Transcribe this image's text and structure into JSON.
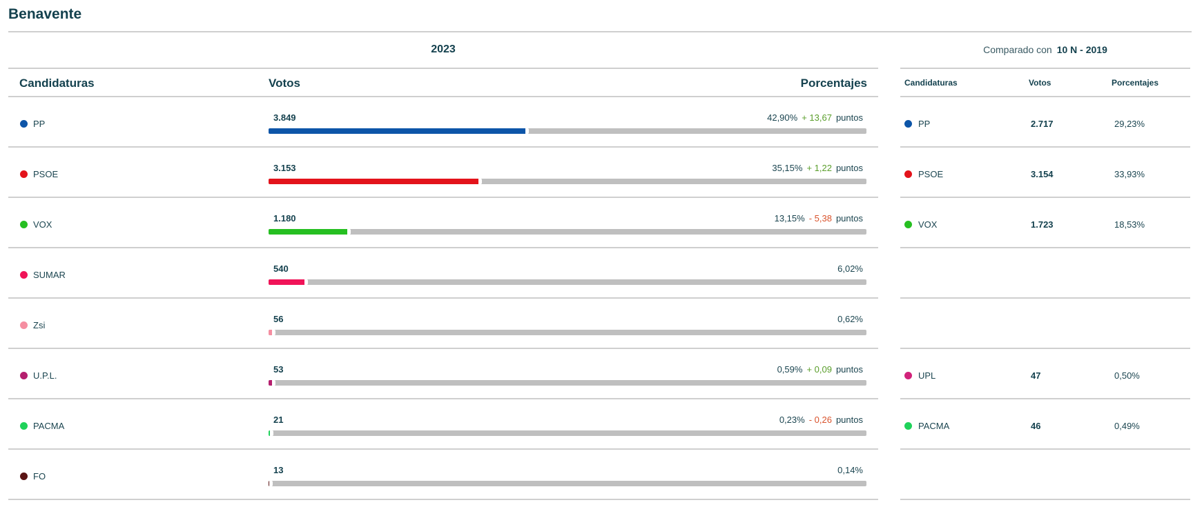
{
  "page_title": "Benavente",
  "main": {
    "year": "2023",
    "headers": {
      "candidaturas": "Candidaturas",
      "votos": "Votos",
      "porcentajes": "Porcentajes"
    },
    "rows": [
      {
        "name": "PP",
        "color": "#0d55a8",
        "votes": "3.849",
        "pct": "42,90%",
        "fraction": 0.429,
        "diff": "+ 13,67",
        "diff_dir": "up",
        "pts": "puntos"
      },
      {
        "name": "PSOE",
        "color": "#e3131b",
        "votes": "3.153",
        "pct": "35,15%",
        "fraction": 0.3515,
        "diff": "+ 1,22",
        "diff_dir": "up",
        "pts": "puntos"
      },
      {
        "name": "VOX",
        "color": "#26bf21",
        "votes": "1.180",
        "pct": "13,15%",
        "fraction": 0.1315,
        "diff": "- 5,38",
        "diff_dir": "down",
        "pts": "puntos"
      },
      {
        "name": "SUMAR",
        "color": "#f01458",
        "votes": "540",
        "pct": "6,02%",
        "fraction": 0.0602,
        "diff": "",
        "diff_dir": "",
        "pts": ""
      },
      {
        "name": "Zsi",
        "color": "#f58ea1",
        "votes": "56",
        "pct": "0,62%",
        "fraction": 0.0062,
        "diff": "",
        "diff_dir": "",
        "pts": ""
      },
      {
        "name": "U.P.L.",
        "color": "#b51f6e",
        "votes": "53",
        "pct": "0,59%",
        "fraction": 0.0059,
        "diff": "+ 0,09",
        "diff_dir": "up",
        "pts": "puntos"
      },
      {
        "name": "PACMA",
        "color": "#1fd25a",
        "votes": "21",
        "pct": "0,23%",
        "fraction": 0.0023,
        "diff": "- 0,26",
        "diff_dir": "down",
        "pts": "puntos"
      },
      {
        "name": "FO",
        "color": "#5a1414",
        "votes": "13",
        "pct": "0,14%",
        "fraction": 0.0014,
        "diff": "",
        "diff_dir": "",
        "pts": ""
      }
    ]
  },
  "comparison": {
    "label": "Comparado con",
    "election": "10 N - 2019",
    "headers": {
      "candidaturas": "Candidaturas",
      "votos": "Votos",
      "porcentajes": "Porcentajes"
    },
    "rows": [
      {
        "name": "PP",
        "color": "#0d55a8",
        "votes": "2.717",
        "pct": "29,23%"
      },
      {
        "name": "PSOE",
        "color": "#e3131b",
        "votes": "3.154",
        "pct": "33,93%"
      },
      {
        "name": "VOX",
        "color": "#26bf21",
        "votes": "1.723",
        "pct": "18,53%"
      },
      {
        "name": "",
        "color": "",
        "votes": "",
        "pct": ""
      },
      {
        "name": "",
        "color": "",
        "votes": "",
        "pct": ""
      },
      {
        "name": "UPL",
        "color": "#d1227a",
        "votes": "47",
        "pct": "0,50%"
      },
      {
        "name": "PACMA",
        "color": "#1fd25a",
        "votes": "46",
        "pct": "0,49%"
      },
      {
        "name": "",
        "color": "",
        "votes": "",
        "pct": ""
      }
    ]
  }
}
